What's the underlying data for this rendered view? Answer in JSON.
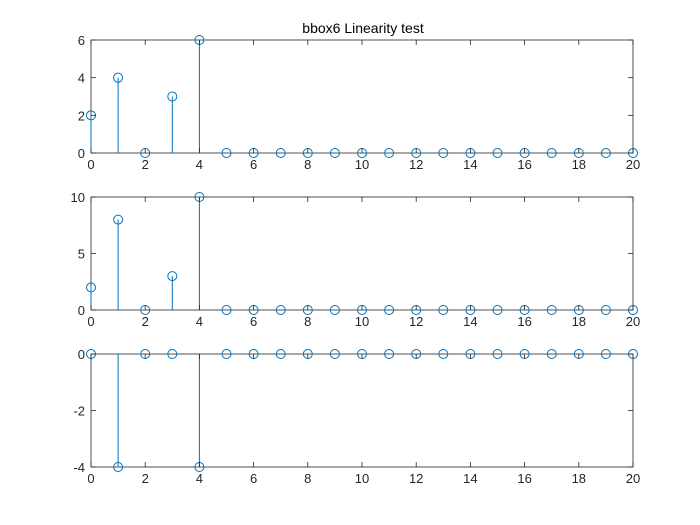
{
  "figure": {
    "title": "bbox6 Linearity test",
    "series_color": "#0072BD"
  },
  "chart_data": [
    {
      "type": "stem",
      "x": [
        0,
        1,
        2,
        3,
        4,
        5,
        6,
        7,
        8,
        9,
        10,
        11,
        12,
        13,
        14,
        15,
        16,
        17,
        18,
        19,
        20
      ],
      "y": [
        2,
        4,
        0,
        3,
        6,
        0,
        0,
        0,
        0,
        0,
        0,
        0,
        0,
        0,
        0,
        0,
        0,
        0,
        0,
        0,
        0
      ],
      "xlim": [
        0,
        20
      ],
      "ylim": [
        0,
        6
      ],
      "xticks": [
        0,
        2,
        4,
        6,
        8,
        10,
        12,
        14,
        16,
        18,
        20
      ],
      "yticks": [
        0,
        2,
        4,
        6
      ],
      "grid": false
    },
    {
      "type": "stem",
      "x": [
        0,
        1,
        2,
        3,
        4,
        5,
        6,
        7,
        8,
        9,
        10,
        11,
        12,
        13,
        14,
        15,
        16,
        17,
        18,
        19,
        20
      ],
      "y": [
        2,
        8,
        0,
        3,
        10,
        0,
        0,
        0,
        0,
        0,
        0,
        0,
        0,
        0,
        0,
        0,
        0,
        0,
        0,
        0,
        0
      ],
      "xlim": [
        0,
        20
      ],
      "ylim": [
        0,
        10
      ],
      "xticks": [
        0,
        2,
        4,
        6,
        8,
        10,
        12,
        14,
        16,
        18,
        20
      ],
      "yticks": [
        0,
        5,
        10
      ],
      "grid": false
    },
    {
      "type": "stem",
      "x": [
        0,
        1,
        2,
        3,
        4,
        5,
        6,
        7,
        8,
        9,
        10,
        11,
        12,
        13,
        14,
        15,
        16,
        17,
        18,
        19,
        20
      ],
      "y": [
        0,
        -4,
        0,
        0,
        -4,
        0,
        0,
        0,
        0,
        0,
        0,
        0,
        0,
        0,
        0,
        0,
        0,
        0,
        0,
        0,
        0
      ],
      "xlim": [
        0,
        20
      ],
      "ylim": [
        -4,
        0
      ],
      "xticks": [
        0,
        2,
        4,
        6,
        8,
        10,
        12,
        14,
        16,
        18,
        20
      ],
      "yticks": [
        -4,
        -2,
        0
      ],
      "grid": false
    }
  ]
}
